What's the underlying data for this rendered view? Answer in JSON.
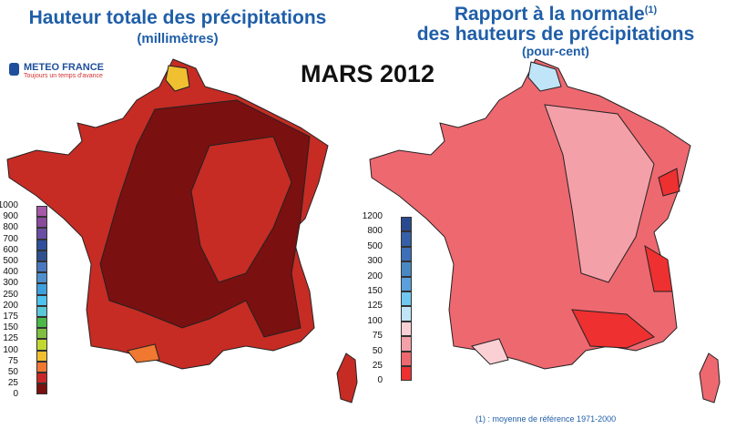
{
  "left": {
    "title": "Hauteur totale des précipitations",
    "subtitle": "(millimètres)",
    "legend_labels": [
      "1000",
      "900",
      "800",
      "700",
      "600",
      "500",
      "400",
      "300",
      "250",
      "200",
      "175",
      "150",
      "125",
      "100",
      "75",
      "50",
      "25",
      "0"
    ],
    "legend_colors": [
      "#a659a8",
      "#8a4a9c",
      "#6a4ea4",
      "#2f4f9c",
      "#2f4f8f",
      "#4a78c0",
      "#4f8fd0",
      "#3fa0e0",
      "#4fc3f0",
      "#5bc8d8",
      "#4cb848",
      "#80c040",
      "#c0d830",
      "#f0c030",
      "#f07830",
      "#c82828",
      "#7a1010"
    ]
  },
  "right": {
    "title": "Rapport à la normale",
    "title_sup": "(1)",
    "title2": "des hauteurs de précipitations",
    "subtitle": "(pour-cent)",
    "legend_labels": [
      "1200",
      "800",
      "500",
      "300",
      "200",
      "150",
      "125",
      "100",
      "75",
      "50",
      "25",
      "0"
    ],
    "legend_colors": [
      "#2a4a90",
      "#3560a8",
      "#3d70b8",
      "#4a88c4",
      "#5aa0dc",
      "#70c8f0",
      "#c0e4f8",
      "#fbd0d4",
      "#f4a0a8",
      "#ee6870",
      "#ee3030"
    ]
  },
  "month": "MARS 2012",
  "logo": {
    "name": "METEO FRANCE",
    "slogan": "Toujours un temps d'avance"
  },
  "footnote": "(1) : moyenne de référence 1971-2000"
}
